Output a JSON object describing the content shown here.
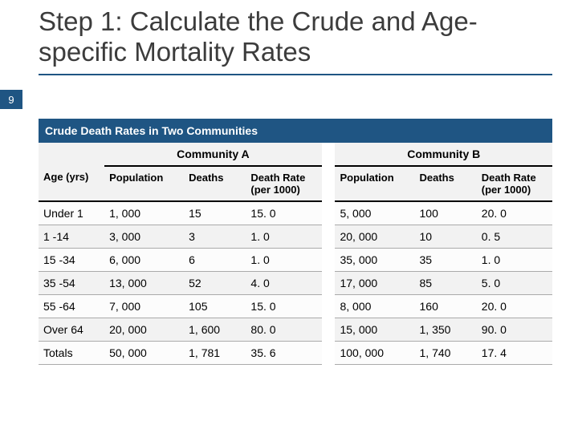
{
  "slide_number": "9",
  "title": "Step 1: Calculate the Crude and Age-specific Mortality Rates",
  "table": {
    "banner": "Crude Death Rates in Two Communities",
    "community_a_label": "Community A",
    "community_b_label": "Community B",
    "headers": {
      "age": "Age (yrs)",
      "pop": "Population",
      "deaths": "Deaths",
      "rate": "Death Rate (per 1000)"
    },
    "rows": [
      {
        "age": "Under 1",
        "a_pop": "1, 000",
        "a_d": "15",
        "a_r": "15. 0",
        "b_pop": "5, 000",
        "b_d": "100",
        "b_r": "20. 0"
      },
      {
        "age": "1 -14",
        "a_pop": "3, 000",
        "a_d": "3",
        "a_r": "1. 0",
        "b_pop": "20, 000",
        "b_d": "10",
        "b_r": "0. 5"
      },
      {
        "age": "15 -34",
        "a_pop": "6, 000",
        "a_d": "6",
        "a_r": "1. 0",
        "b_pop": "35, 000",
        "b_d": "35",
        "b_r": "1. 0"
      },
      {
        "age": "35 -54",
        "a_pop": "13, 000",
        "a_d": "52",
        "a_r": "4. 0",
        "b_pop": "17, 000",
        "b_d": "85",
        "b_r": "5. 0"
      },
      {
        "age": "55 -64",
        "a_pop": "7, 000",
        "a_d": "105",
        "a_r": "15. 0",
        "b_pop": "8, 000",
        "b_d": "160",
        "b_r": "20. 0"
      },
      {
        "age": "Over 64",
        "a_pop": "20, 000",
        "a_d": "1, 600",
        "a_r": "80. 0",
        "b_pop": "15, 000",
        "b_d": "1, 350",
        "b_r": "90. 0"
      },
      {
        "age": "Totals",
        "a_pop": "50, 000",
        "a_d": "1, 781",
        "a_r": "35. 6",
        "b_pop": "100, 000",
        "b_d": "1, 740",
        "b_r": "17. 4"
      }
    ]
  }
}
